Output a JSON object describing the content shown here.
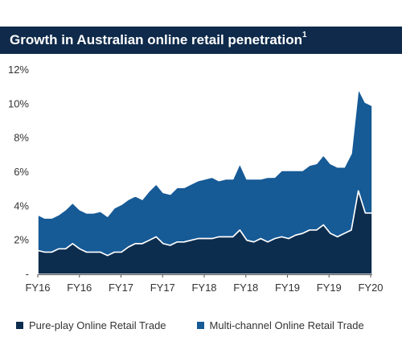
{
  "title": "Growth in Australian online retail penetration",
  "title_superscript": "1",
  "chart_data": {
    "type": "area",
    "stacked": true,
    "title": "Growth in Australian online retail penetration",
    "xlabel": "",
    "ylabel": "",
    "ylim": [
      0,
      12
    ],
    "y_ticks": [
      "-",
      "2%",
      "4%",
      "6%",
      "8%",
      "10%",
      "12%"
    ],
    "x_ticks": [
      "FY16",
      "FY16",
      "FY17",
      "FY17",
      "FY18",
      "FY18",
      "FY19",
      "FY19",
      "FY20"
    ],
    "grid": false,
    "legend_position": "bottom",
    "series": [
      {
        "name": "Pure-play Online Retail Trade",
        "color": "#0d2d4e",
        "values": [
          1.4,
          1.3,
          1.3,
          1.5,
          1.5,
          1.8,
          1.5,
          1.3,
          1.3,
          1.3,
          1.1,
          1.3,
          1.3,
          1.6,
          1.8,
          1.8,
          2.0,
          2.2,
          1.8,
          1.7,
          1.9,
          1.9,
          2.0,
          2.1,
          2.1,
          2.1,
          2.2,
          2.2,
          2.2,
          2.6,
          2.0,
          1.9,
          2.1,
          1.9,
          2.1,
          2.2,
          2.1,
          2.3,
          2.4,
          2.6,
          2.6,
          2.9,
          2.4,
          2.2,
          2.4,
          2.6,
          4.9,
          3.6,
          3.6
        ]
      },
      {
        "name": "Multi-channel Online Retail Trade",
        "color": "#165a96",
        "values": [
          2.1,
          2.0,
          2.0,
          2.0,
          2.3,
          2.4,
          2.3,
          2.3,
          2.3,
          2.4,
          2.3,
          2.6,
          2.8,
          2.8,
          2.8,
          2.6,
          2.9,
          3.1,
          3.0,
          3.0,
          3.2,
          3.2,
          3.3,
          3.4,
          3.5,
          3.6,
          3.3,
          3.4,
          3.4,
          3.9,
          3.6,
          3.7,
          3.5,
          3.8,
          3.6,
          3.9,
          4.0,
          3.8,
          3.7,
          3.8,
          3.9,
          4.1,
          4.1,
          4.1,
          3.9,
          4.5,
          6.0,
          6.5,
          6.3
        ]
      }
    ]
  }
}
